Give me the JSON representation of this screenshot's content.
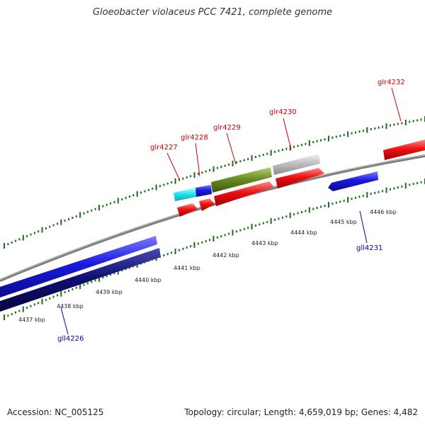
{
  "title": "Gloeobacter violaceus PCC 7421, complete genome",
  "footer": {
    "accession": "Accession: NC_005125",
    "meta": "Topology: circular; Length: 4,659,019 bp; Genes: 4,482"
  },
  "scale_labels": [
    "4437 kbp",
    "4438 kbp",
    "4439 kbp",
    "4440 kbp",
    "4441 kbp",
    "4442 kbp",
    "4443 kbp",
    "4444 kbp",
    "4445 kbp",
    "4446 kbp"
  ],
  "gene_labels": {
    "glr4227": "glr4227",
    "glr4228": "glr4228",
    "glr4229": "glr4229",
    "glr4230": "glr4230",
    "glr4232": "glr4232",
    "gll4231": "gll4231",
    "gll4226": "gll4226"
  },
  "colors": {
    "forward_label": "#cc0000",
    "reverse_label": "#0000aa",
    "red": "#ee1111",
    "blue": "#1a1adf",
    "dark_blue": "#101075",
    "cyan": "#22e6f0",
    "olive": "#6b8e23",
    "gray": "#c0c0c0",
    "tick": "#1b6b1b"
  }
}
